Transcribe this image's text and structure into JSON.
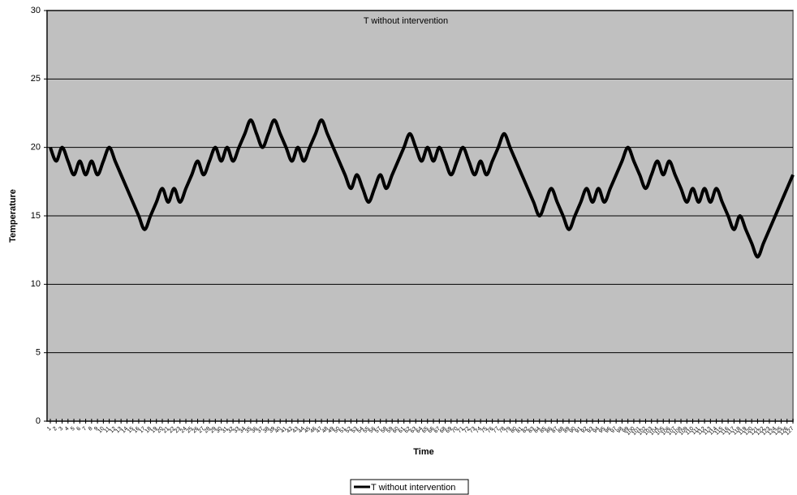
{
  "chart_data": {
    "type": "line",
    "title": "T without intervention",
    "x_label": "Time",
    "y_label": "Temperature",
    "categories": [
      1,
      2,
      3,
      4,
      5,
      6,
      7,
      8,
      9,
      10,
      11,
      12,
      13,
      14,
      15,
      16,
      17,
      18,
      19,
      20,
      21,
      22,
      23,
      24,
      25,
      26,
      27,
      28,
      29,
      30,
      31,
      32,
      33,
      34,
      35,
      36,
      37,
      38,
      39,
      40,
      41,
      42,
      43,
      44,
      45,
      46,
      47,
      48,
      49,
      50,
      51,
      52,
      53,
      54,
      55,
      56,
      57,
      58,
      59,
      60,
      61,
      62,
      63,
      64,
      65,
      66,
      67,
      68,
      69,
      70,
      71,
      72,
      73,
      74,
      75,
      76,
      77,
      78,
      79,
      80,
      81,
      82,
      83,
      84,
      85,
      86,
      87,
      88,
      89,
      90,
      91,
      92,
      93,
      94,
      95,
      96,
      97,
      98,
      99,
      100,
      101,
      102,
      103,
      104,
      105,
      106,
      107,
      108,
      109,
      110,
      111,
      112,
      113,
      114,
      115,
      116,
      117,
      118,
      119,
      120,
      121,
      122,
      123,
      124,
      125,
      126,
      127
    ],
    "series": [
      {
        "name": "T without intervention",
        "color": "#000000",
        "values": [
          20,
          19,
          20,
          19,
          18,
          19,
          18,
          19,
          18,
          19,
          20,
          19,
          18,
          17,
          16,
          15,
          14,
          15,
          16,
          17,
          16,
          17,
          16,
          17,
          18,
          19,
          18,
          19,
          20,
          19,
          20,
          19,
          20,
          21,
          22,
          21,
          20,
          21,
          22,
          21,
          20,
          19,
          20,
          19,
          20,
          21,
          22,
          21,
          20,
          19,
          18,
          17,
          18,
          17,
          16,
          17,
          18,
          17,
          18,
          19,
          20,
          21,
          20,
          19,
          20,
          19,
          20,
          19,
          18,
          19,
          20,
          19,
          18,
          19,
          18,
          19,
          20,
          21,
          20,
          19,
          18,
          17,
          16,
          15,
          16,
          17,
          16,
          15,
          14,
          15,
          16,
          17,
          16,
          17,
          16,
          17,
          18,
          19,
          20,
          19,
          18,
          17,
          18,
          19,
          18,
          19,
          18,
          17,
          16,
          17,
          16,
          17,
          16,
          17,
          16,
          15,
          14,
          15,
          14,
          13,
          12,
          13,
          14,
          15,
          16,
          17,
          18
        ]
      }
    ],
    "ylim": [
      0,
      30
    ],
    "yticks": [
      0,
      5,
      10,
      15,
      20,
      25,
      30
    ],
    "grid": true,
    "legend": "bottom"
  }
}
